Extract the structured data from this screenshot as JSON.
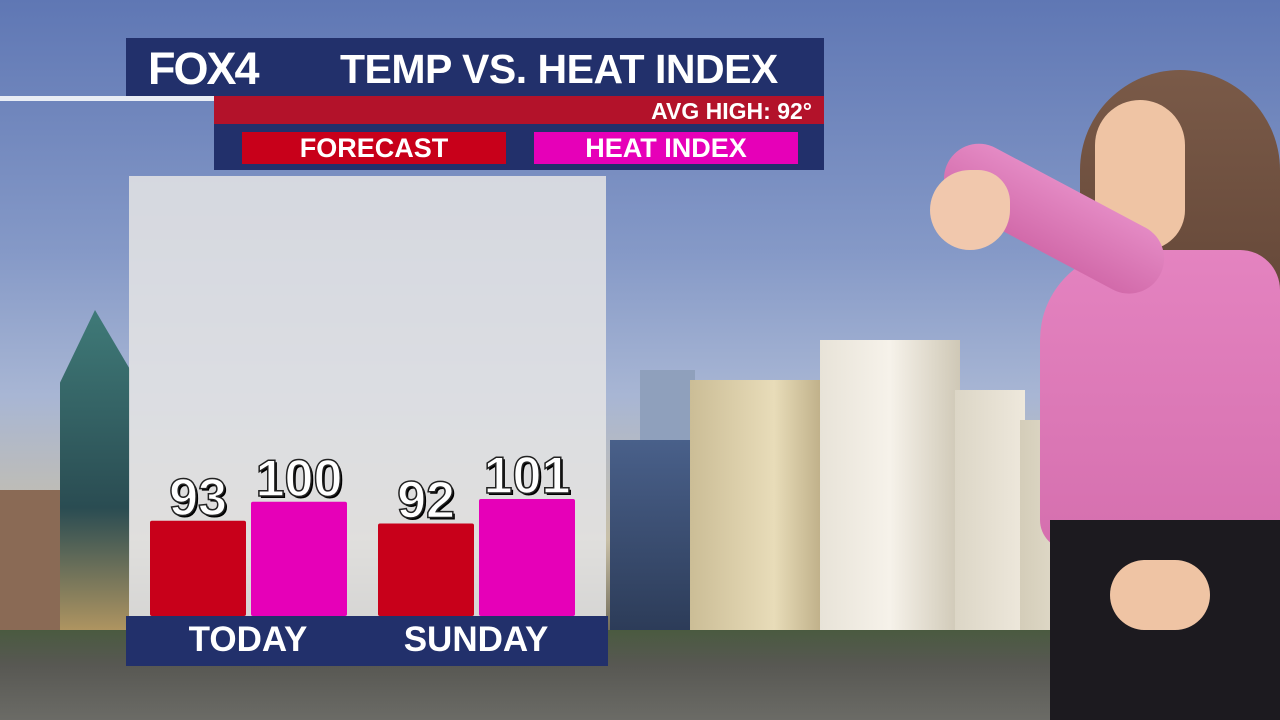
{
  "header": {
    "logo": "FOX4",
    "title": "TEMP VS. HEAT INDEX",
    "avg_high": "AVG HIGH: 92°"
  },
  "colors": {
    "navy": "#22306b",
    "red_strip": "#b3122a",
    "forecast": "#c8001a",
    "heat_index": "#e600b8"
  },
  "chart_data": {
    "type": "bar",
    "categories": [
      "TODAY",
      "SUNDAY"
    ],
    "series": [
      {
        "name": "FORECAST",
        "color": "#c8001a",
        "values": [
          93,
          92
        ]
      },
      {
        "name": "HEAT INDEX",
        "color": "#e600b8",
        "values": [
          100,
          101
        ]
      }
    ],
    "legend": "top"
  }
}
